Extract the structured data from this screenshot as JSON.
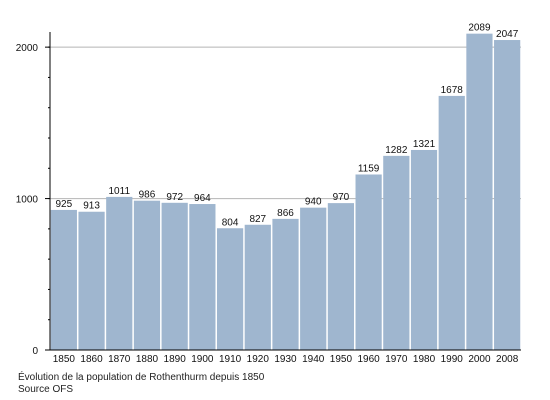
{
  "caption": "Évolution de la population de Rothenthurm depuis 1850",
  "source": "Source OFS",
  "colors": {
    "bar": "#9fb6cf",
    "grid": "#b5b5b5",
    "axis": "#000000",
    "text": "#111111"
  },
  "chart_data": {
    "type": "bar",
    "title": "",
    "xlabel": "",
    "ylabel": "",
    "categories": [
      "1850",
      "1860",
      "1870",
      "1880",
      "1890",
      "1900",
      "1910",
      "1920",
      "1930",
      "1940",
      "1950",
      "1960",
      "1970",
      "1980",
      "1990",
      "2000",
      "2008"
    ],
    "values": [
      925,
      913,
      1011,
      986,
      972,
      964,
      804,
      827,
      866,
      940,
      970,
      1159,
      1282,
      1321,
      1678,
      2089,
      2047
    ],
    "ylim": [
      0,
      2100
    ],
    "yticks": [
      0,
      1000,
      2000
    ],
    "minor_ytick_step": 200,
    "grid": true,
    "legend": "none"
  }
}
